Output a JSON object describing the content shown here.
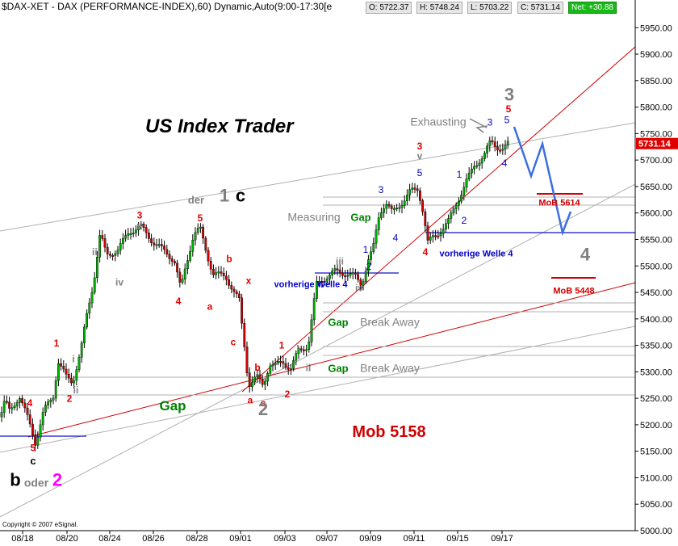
{
  "header": {
    "title": "$DAX-XET - DAX (PERFORMANCE-INDEX),60) Dynamic,Auto(9:00-17:30[e",
    "open": "O: 5722.37",
    "high": "H: 5748.24",
    "low": "L: 5703.22",
    "close": "C: 5731.14",
    "net": "Net: +30.88"
  },
  "brand": "US Index Trader",
  "copyright": "Copyright © 2007 eSignal.",
  "colors": {
    "up": "#00b000",
    "down": "#d00000",
    "trendline": "#d00000",
    "channel": "#b0b0b0",
    "wave_red": "#e00000",
    "wave_blue": "#0000cc",
    "wave_gray": "#808080",
    "gap_green": "#008000",
    "projection": "#3a6fe0"
  },
  "chart_data": {
    "type": "candlestick",
    "x_ticks": [
      "08/18",
      "08/20",
      "08/24",
      "08/26",
      "08/28",
      "09/01",
      "09/03",
      "09/07",
      "09/09",
      "09/11",
      "09/15",
      "09/17"
    ],
    "y_ticks": [
      5000,
      5050,
      5100,
      5150,
      5200,
      5250,
      5300,
      5350,
      5400,
      5450,
      5500,
      5550,
      5600,
      5650,
      5700,
      5750,
      5800,
      5850,
      5900,
      5950
    ],
    "ylim": [
      5000,
      5975
    ],
    "last_price": "5731.14",
    "grid": false,
    "series": [
      {
        "name": "",
        "path": [
          [
            0,
            5215
          ],
          [
            6,
            5245
          ],
          [
            12,
            5225
          ],
          [
            24,
            5255
          ],
          [
            36,
            5205
          ],
          [
            44,
            5165
          ],
          [
            54,
            5225
          ],
          [
            66,
            5255
          ],
          [
            72,
            5320
          ],
          [
            82,
            5290
          ],
          [
            90,
            5280
          ],
          [
            100,
            5340
          ],
          [
            108,
            5410
          ],
          [
            116,
            5470
          ],
          [
            124,
            5560
          ],
          [
            132,
            5520
          ],
          [
            146,
            5530
          ],
          [
            160,
            5565
          ],
          [
            168,
            5570
          ],
          [
            174,
            5575
          ],
          [
            190,
            5545
          ],
          [
            206,
            5525
          ],
          [
            216,
            5510
          ],
          [
            224,
            5455
          ],
          [
            230,
            5500
          ],
          [
            240,
            5560
          ],
          [
            248,
            5570
          ],
          [
            256,
            5525
          ],
          [
            264,
            5485
          ],
          [
            280,
            5480
          ],
          [
            290,
            5450
          ],
          [
            298,
            5430
          ],
          [
            292,
            5380
          ],
          [
            300,
            5390
          ],
          [
            308,
            5275
          ],
          [
            318,
            5290
          ],
          [
            326,
            5275
          ],
          [
            334,
            5315
          ],
          [
            340,
            5310
          ],
          [
            350,
            5320
          ],
          [
            360,
            5305
          ],
          [
            370,
            5340
          ],
          [
            382,
            5350
          ],
          [
            392,
            5465
          ],
          [
            400,
            5475
          ],
          [
            416,
            5490
          ],
          [
            430,
            5485
          ],
          [
            440,
            5480
          ],
          [
            448,
            5465
          ],
          [
            456,
            5510
          ],
          [
            462,
            5530
          ],
          [
            470,
            5600
          ],
          [
            478,
            5620
          ],
          [
            486,
            5600
          ],
          [
            498,
            5620
          ],
          [
            508,
            5640
          ],
          [
            518,
            5645
          ],
          [
            524,
            5605
          ],
          [
            530,
            5545
          ],
          [
            542,
            5560
          ],
          [
            556,
            5585
          ],
          [
            566,
            5620
          ],
          [
            578,
            5660
          ],
          [
            588,
            5690
          ],
          [
            600,
            5710
          ],
          [
            608,
            5735
          ],
          [
            616,
            5725
          ],
          [
            624,
            5720
          ],
          [
            630,
            5731
          ]
        ]
      }
    ],
    "annotations": {
      "red": [
        {
          "text": "4",
          "x": 37,
          "y": 5235
        },
        {
          "text": "1",
          "x": 70,
          "y": 5348
        },
        {
          "text": "2",
          "x": 86,
          "y": 5243
        },
        {
          "text": "3",
          "x": 173,
          "y": 5590
        },
        {
          "text": "5",
          "x": 248,
          "y": 5584
        },
        {
          "text": "4",
          "x": 221,
          "y": 5427
        },
        {
          "text": "a",
          "x": 260,
          "y": 5417
        },
        {
          "text": "b",
          "x": 284,
          "y": 5507
        },
        {
          "text": "x",
          "x": 308,
          "y": 5466
        },
        {
          "text": "c",
          "x": 289,
          "y": 5350
        },
        {
          "text": "1",
          "x": 349,
          "y": 5344
        },
        {
          "text": "b",
          "x": 319,
          "y": 5302
        },
        {
          "text": "a",
          "x": 310,
          "y": 5240
        },
        {
          "text": "c",
          "x": 326,
          "y": 5235
        },
        {
          "text": "2",
          "x": 356,
          "y": 5252
        },
        {
          "text": "3",
          "x": 520,
          "y": 5720
        },
        {
          "text": "4",
          "x": 527,
          "y": 5520
        },
        {
          "text": "5",
          "x": 630,
          "y": 5790
        },
        {
          "text": "5",
          "x": 41,
          "y": 5150
        }
      ],
      "blue": [
        {
          "text": "vorherige  Welle 4",
          "x": 385,
          "y": 5460
        },
        {
          "text": "vorherige  Welle 4",
          "x": 590,
          "y": 5518
        },
        {
          "text": "1",
          "x": 453,
          "y": 5525
        },
        {
          "text": "2",
          "x": 457,
          "y": 5493
        },
        {
          "text": "3",
          "x": 472,
          "y": 5638
        },
        {
          "text": "4",
          "x": 490,
          "y": 5547
        },
        {
          "text": "5",
          "x": 520,
          "y": 5670
        },
        {
          "text": "1",
          "x": 569,
          "y": 5667
        },
        {
          "text": "2",
          "x": 575,
          "y": 5580
        },
        {
          "text": "3",
          "x": 607,
          "y": 5765
        },
        {
          "text": "5",
          "x": 628,
          "y": 5770
        },
        {
          "text": "4",
          "x": 625,
          "y": 5688
        }
      ],
      "gray": [
        {
          "text": "Exhausting",
          "x": 543,
          "y": 5765
        },
        {
          "text": "Measuring",
          "x": 389,
          "y": 5585
        },
        {
          "text": "Break Away",
          "x": 483,
          "y": 5387
        },
        {
          "text": "Break Away",
          "x": 483,
          "y": 5300
        },
        {
          "text": "iii",
          "x": 119,
          "y": 5520
        },
        {
          "text": "iv",
          "x": 148,
          "y": 5463
        },
        {
          "text": "v",
          "x": 173,
          "y": 5570
        },
        {
          "text": "iii",
          "x": 421,
          "y": 5503
        },
        {
          "text": "iv",
          "x": 445,
          "y": 5452
        },
        {
          "text": "v",
          "x": 520,
          "y": 5702
        },
        {
          "text": "i",
          "x": 91,
          "y": 5318
        },
        {
          "text": "ii",
          "x": 94,
          "y": 5259
        },
        {
          "text": "i",
          "x": 369,
          "y": 5341
        },
        {
          "text": "ii",
          "x": 382,
          "y": 5301
        }
      ],
      "green": [
        {
          "text": "Gap",
          "x": 447,
          "y": 5585
        },
        {
          "text": "Gap",
          "x": 419,
          "y": 5387
        },
        {
          "text": "Gap",
          "x": 419,
          "y": 5300
        },
        {
          "text": "Gap",
          "x": 214,
          "y": 5227
        }
      ],
      "big": [
        {
          "text": "1",
          "x": 278,
          "y": 5622,
          "color": "#808080"
        },
        {
          "text": "der",
          "x": 243,
          "y": 5618,
          "color": "#808080",
          "size": 13
        },
        {
          "text": "c",
          "x": 298,
          "y": 5622,
          "color": "#000000"
        },
        {
          "text": "2",
          "x": 326,
          "y": 5218,
          "color": "#808080"
        },
        {
          "text": "3",
          "x": 631,
          "y": 5812,
          "color": "#808080"
        },
        {
          "text": "4",
          "x": 725,
          "y": 5510,
          "color": "#808080"
        },
        {
          "text": "b",
          "x": 19,
          "y": 5085,
          "color": "#000000"
        },
        {
          "text": "oder",
          "x": 45,
          "y": 5083,
          "color": "#808080",
          "size": 14
        },
        {
          "text": "2",
          "x": 71,
          "y": 5085,
          "color": "#ff00ff"
        },
        {
          "text": "c",
          "x": 41,
          "y": 5125,
          "color": "#000000",
          "size": 13
        }
      ],
      "mob": [
        {
          "text": "MoB 5614",
          "x": 693,
          "y": 5614
        },
        {
          "text": "MoB 5448",
          "x": 711,
          "y": 5448
        },
        {
          "text": "Mob 5158",
          "x": 482,
          "y": 5177
        }
      ]
    }
  }
}
